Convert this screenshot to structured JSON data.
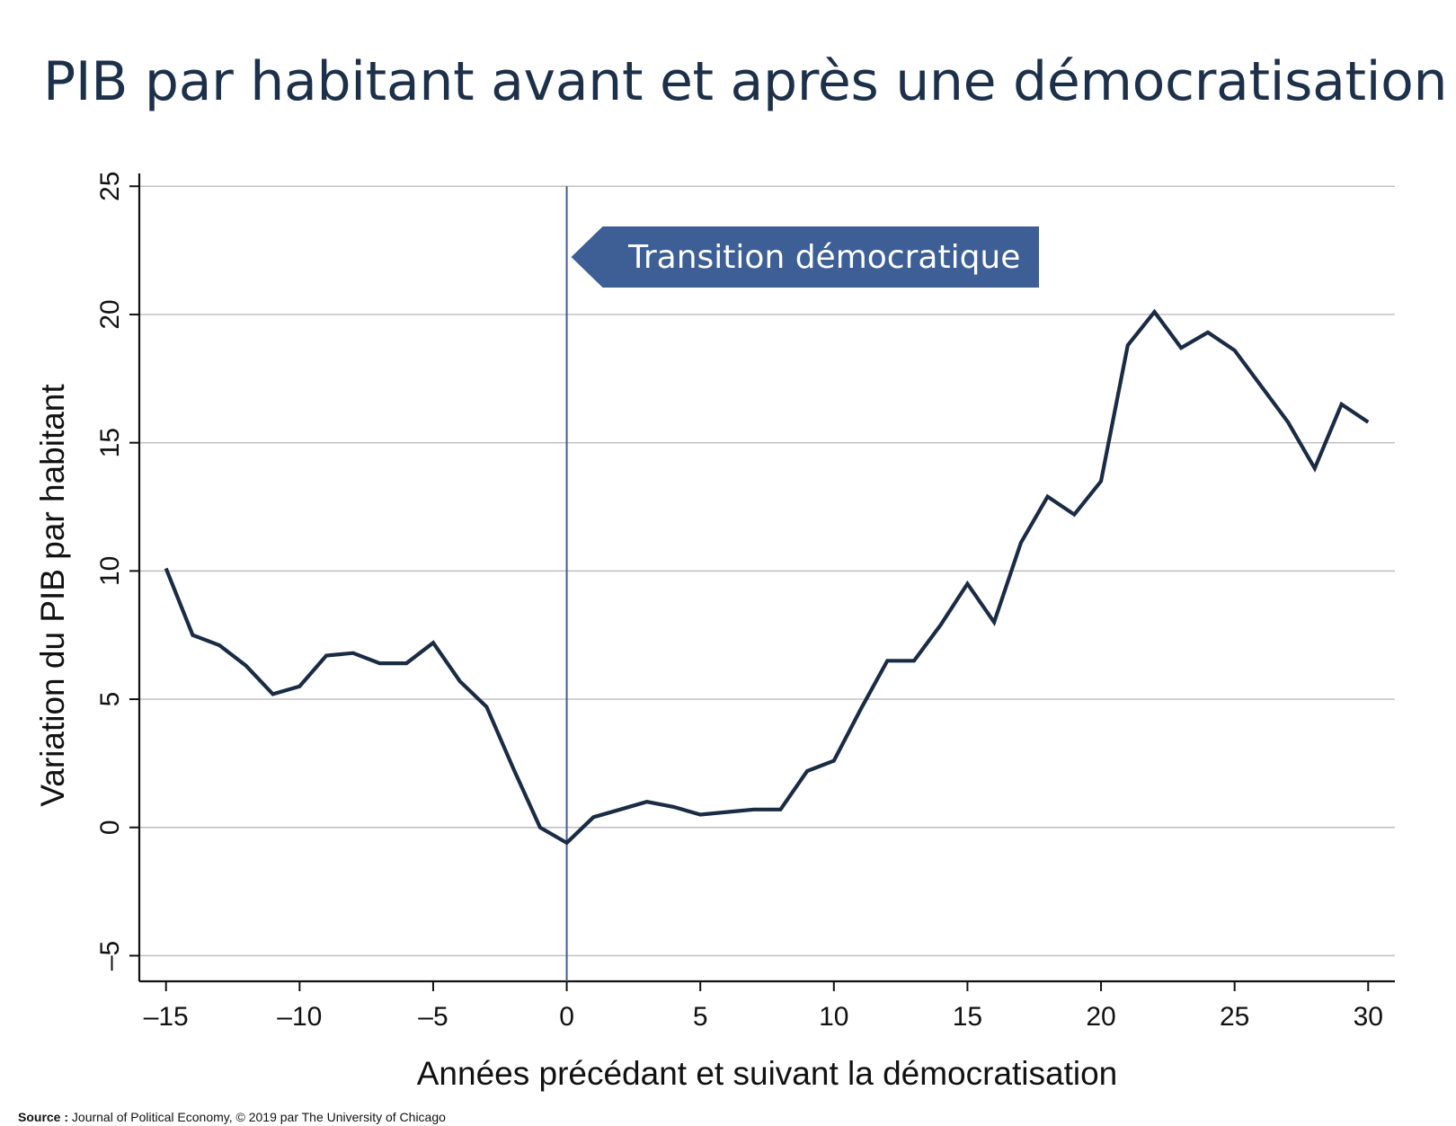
{
  "colors": {
    "title": "#1c3049",
    "series": "#1a2b44",
    "marker": "#3d5f96",
    "annotation_bg": "#3d5f96",
    "annotation_text": "#ffffff",
    "grid": "#bdbdbd",
    "axis": "#111111"
  },
  "source": {
    "label": "Source :",
    "text": "Journal of Political Economy, © 2019 par The University of Chicago"
  },
  "chart_data": {
    "type": "line",
    "title": "PIB par habitant avant et après une démocratisation",
    "xlabel": "Années précédant et suivant la démocratisation",
    "ylabel": "Variation du PIB par habitant",
    "xlim": [
      -16,
      31
    ],
    "ylim": [
      -6,
      25.5
    ],
    "x_ticks": [
      -15,
      -10,
      -5,
      0,
      5,
      10,
      15,
      20,
      25,
      30
    ],
    "x_tick_labels": [
      "–15",
      "–10",
      "–5",
      "0",
      "5",
      "10",
      "15",
      "20",
      "25",
      "30"
    ],
    "y_ticks": [
      -5,
      0,
      5,
      10,
      15,
      20,
      25
    ],
    "y_tick_labels": [
      "–5",
      "0",
      "5",
      "10",
      "15",
      "20",
      "25"
    ],
    "grid": "horizontal",
    "legend": "none",
    "annotation": {
      "text": "Transition démocratique",
      "x": 0
    },
    "x": [
      -15,
      -14,
      -13,
      -12,
      -11,
      -10,
      -9,
      -8,
      -7,
      -6,
      -5,
      -4,
      -3,
      -2,
      -1,
      0,
      1,
      2,
      3,
      4,
      5,
      6,
      7,
      8,
      9,
      10,
      11,
      12,
      13,
      14,
      15,
      16,
      17,
      18,
      19,
      20,
      21,
      22,
      23,
      24,
      25,
      26,
      27,
      28,
      29,
      30
    ],
    "y": [
      10.1,
      7.5,
      7.1,
      6.3,
      5.2,
      5.5,
      6.7,
      6.8,
      6.4,
      6.4,
      7.2,
      5.7,
      4.7,
      2.3,
      0.0,
      -0.6,
      0.4,
      0.7,
      1.0,
      0.8,
      0.5,
      0.6,
      0.7,
      0.7,
      2.2,
      2.6,
      4.6,
      6.5,
      6.5,
      7.9,
      9.5,
      8.0,
      11.1,
      12.9,
      12.2,
      13.5,
      18.8,
      20.1,
      18.7,
      19.3,
      18.6,
      17.2,
      15.8,
      14.0,
      16.5,
      15.8
    ]
  }
}
